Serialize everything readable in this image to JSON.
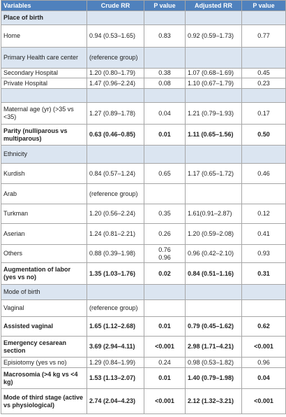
{
  "table": {
    "header": [
      "Variables",
      "Crude RR",
      "P value",
      "Adjusted RR",
      "P value"
    ],
    "rows": [
      [
        "Place of birth",
        null,
        null,
        null,
        null
      ],
      [
        "Home",
        "0.94 (0.53–1.65)",
        "0.83",
        "0.92 (0.59–1.73)",
        "0.77"
      ],
      [
        "Primary Health care center",
        "(reference group)",
        null,
        null,
        null
      ],
      [
        "Secondary Hospital",
        "1.20 (0.80–1.79)",
        "0.38",
        "1.07 (0.68–1.69)",
        "0.45"
      ],
      [
        "Private Hospital",
        "1.47 (0.96–2.24)",
        "0.08",
        "1.10 (0.67–1.79)",
        "0.23"
      ],
      [
        "Maternal age (yr) (>35 vs <35)",
        "1.27 (0.89–1.78)",
        "0.04",
        "1.21 (0.79–1.93)",
        "0.17"
      ],
      [
        "Parity (nulliparous vs multiparous)",
        "0.63 (0.46–0.85)",
        "0.01",
        "1.11 (0.65–1.56)",
        "0.50"
      ],
      [
        "Ethnicity",
        null,
        null,
        null,
        null
      ],
      [
        "Kurdish",
        "0.84 (0.57–1.24)",
        "0.65",
        "1.17 (0.65–1.72)",
        "0.46"
      ],
      [
        "Arab",
        "(reference group)",
        null,
        null,
        null
      ],
      [
        "Turkman",
        "1.20 (0.56–2.24)",
        "0.35",
        "1.61(0.91–2.87)",
        "0.12"
      ],
      [
        "Aserian",
        "1.24 (0.81–2.21)",
        "0.26",
        "1.20 (0.59–2.08)",
        "0.41"
      ],
      [
        "Others",
        "0.88 (0.39–1.98)",
        [
          "0.76",
          "0.96"
        ],
        "0.96 (0.42–2.10)",
        "0.93"
      ],
      [
        "Augmentation of labor (yes vs no)",
        "1.35 (1.03–1.76)",
        "0.02",
        "0.84 (0.51–1.16)",
        "0.31"
      ],
      [
        "Mode of birth",
        null,
        null,
        null,
        null
      ],
      [
        "Vaginal",
        "(reference group)",
        null,
        null,
        null
      ],
      [
        "Assisted vaginal",
        "1.65 (1.12–2.68)",
        "0.01",
        "0.79 (0.45–1.62)",
        "0.62"
      ],
      [
        "Emergency cesarean section",
        "3.69 (2.94–4.11)",
        "<0.001",
        "2.98 (1.71–4.21)",
        "<0.001"
      ],
      [
        "Episiotomy (yes vs no)",
        "1.29 (0.84–1.99)",
        "0.24",
        "0.98 (0.53–1.82)",
        "0.96"
      ],
      [
        "Macrosomia (>4 kg vs <4 kg)",
        "1.53 (1.13–2.07)",
        "0.01",
        "1.40 (0.79–1.98)",
        "0.04"
      ],
      [
        "Mode of third stage (active vs physiological)",
        "2.74 (2.04–4.23)",
        "<0.001",
        "2.12 (1.32–3.21)",
        "<0.001"
      ]
    ]
  }
}
